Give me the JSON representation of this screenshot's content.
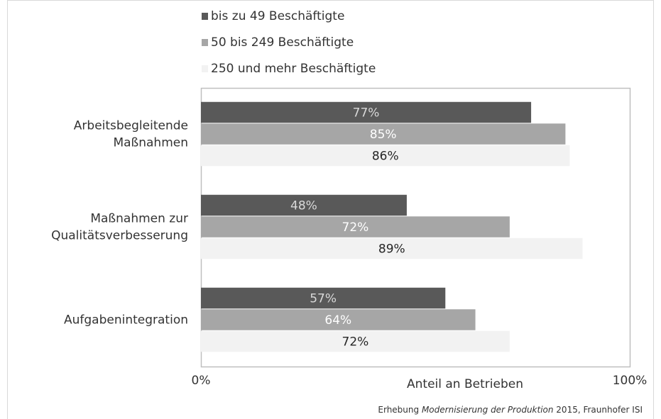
{
  "chart_data": {
    "type": "hbar",
    "categories": [
      [
        "Arbeitsbegleitende",
        "Maßnahmen"
      ],
      [
        "Maßnahmen zur",
        "Qualitätsverbesserung"
      ],
      [
        "Aufgabenintegration"
      ]
    ],
    "series": [
      {
        "name": "bis zu 49 Beschäftigte",
        "color": "#595959",
        "label_color": "#d9d9d9",
        "values": [
          77,
          48,
          57
        ],
        "value_labels": [
          "77%",
          "48%",
          "57%"
        ]
      },
      {
        "name": "50 bis 249 Beschäftigte",
        "color": "#a6a6a6",
        "label_color": "#ffffff",
        "values": [
          85,
          72,
          64
        ],
        "value_labels": [
          "85%",
          "72%",
          "64%"
        ]
      },
      {
        "name": "250 und mehr Beschäftigte",
        "color": "#f2f2f2",
        "label_color": "#262626",
        "values": [
          86,
          89,
          72
        ],
        "value_labels": [
          "86%",
          "89%",
          "72%"
        ]
      }
    ],
    "xlim": [
      0,
      100
    ],
    "xticks": [
      {
        "value": 0,
        "label": "0%"
      },
      {
        "value": 100,
        "label": "100%"
      }
    ],
    "xlabel": "Anteil an Betrieben",
    "source": {
      "before": "Erhebung ",
      "italic": "Modernisierung der Produktion",
      "after": " 2015, Fraunhofer ISI"
    }
  }
}
